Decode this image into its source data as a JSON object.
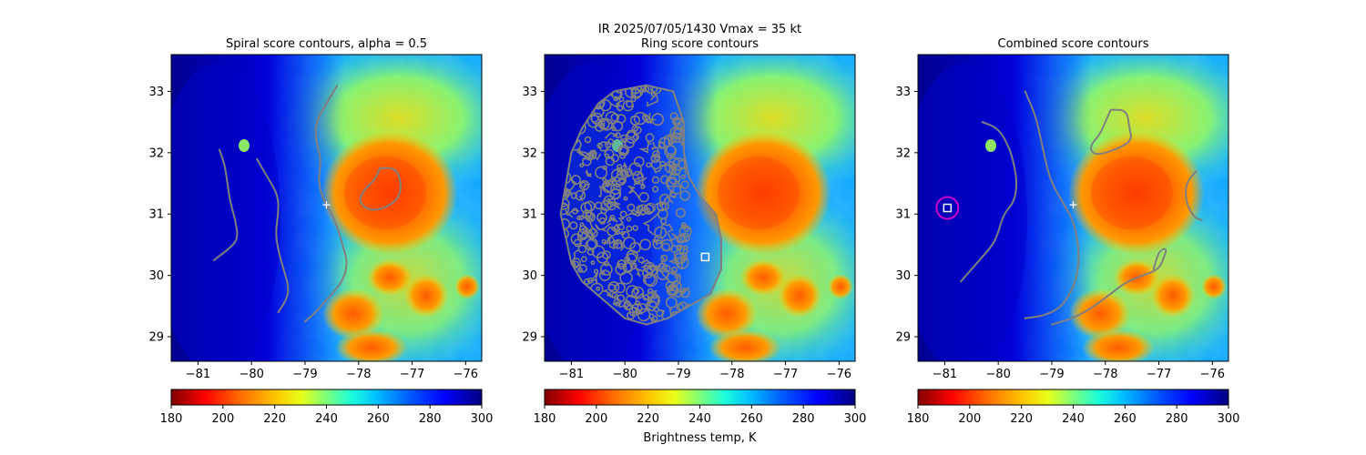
{
  "figure": {
    "suptitle_line1": "IR  2025/07/05/1430    Vmax = 35 kt",
    "colorbar_label": "Brightness temp, K"
  },
  "colors": {
    "contour": "#808080",
    "marker": "#ffffff",
    "circle": "#cc00cc"
  },
  "chart_data": [
    {
      "type": "heatmap",
      "title": "Spiral score contours, alpha =  0.5",
      "xlim": [
        -81.5,
        -75.7
      ],
      "ylim": [
        28.6,
        33.6
      ],
      "xticks": [
        -81,
        -80,
        -79,
        -78,
        -77,
        -76
      ],
      "yticks": [
        29,
        30,
        31,
        32,
        33
      ],
      "xtick_labels": [
        "−81",
        "−80",
        "−79",
        "−78",
        "−77",
        "−76"
      ],
      "ytick_labels": [
        "29",
        "30",
        "31",
        "32",
        "33"
      ],
      "colorbar": {
        "range": [
          180,
          300
        ],
        "ticks": [
          180,
          200,
          220,
          240,
          260,
          280,
          300
        ],
        "tick_labels": [
          "180",
          "200",
          "220",
          "240",
          "260",
          "280",
          "300"
        ],
        "cmap": "jet_r"
      },
      "center_marker": {
        "lon": -78.6,
        "lat": 31.15,
        "symbol": "plus"
      },
      "contours": [
        [
          [
            -80.6,
            32.05
          ],
          [
            -80.5,
            31.8
          ],
          [
            -80.45,
            31.5
          ],
          [
            -80.4,
            31.2
          ],
          [
            -80.3,
            30.9
          ],
          [
            -80.25,
            30.6
          ],
          [
            -80.4,
            30.45
          ],
          [
            -80.7,
            30.25
          ]
        ],
        [
          [
            -79.9,
            31.9
          ],
          [
            -79.7,
            31.6
          ],
          [
            -79.5,
            31.3
          ],
          [
            -79.5,
            31.0
          ],
          [
            -79.55,
            30.7
          ],
          [
            -79.5,
            30.4
          ],
          [
            -79.4,
            30.1
          ],
          [
            -79.3,
            29.8
          ],
          [
            -79.35,
            29.6
          ],
          [
            -79.5,
            29.4
          ]
        ],
        [
          [
            -78.4,
            33.1
          ],
          [
            -78.6,
            32.8
          ],
          [
            -78.8,
            32.5
          ],
          [
            -78.8,
            32.2
          ],
          [
            -78.7,
            31.9
          ],
          [
            -78.75,
            31.6
          ],
          [
            -78.7,
            31.3
          ],
          [
            -78.5,
            31.0
          ],
          [
            -78.4,
            30.8
          ],
          [
            -78.3,
            30.5
          ],
          [
            -78.2,
            30.2
          ],
          [
            -78.3,
            29.9
          ],
          [
            -78.5,
            29.7
          ],
          [
            -78.8,
            29.4
          ],
          [
            -79.0,
            29.25
          ]
        ],
        [
          [
            -77.6,
            31.75
          ],
          [
            -77.3,
            31.75
          ],
          [
            -77.2,
            31.5
          ],
          [
            -77.25,
            31.25
          ],
          [
            -77.5,
            31.1
          ],
          [
            -77.8,
            31.05
          ],
          [
            -78.0,
            31.2
          ],
          [
            -77.9,
            31.4
          ],
          [
            -77.7,
            31.55
          ],
          [
            -77.6,
            31.75
          ]
        ]
      ]
    },
    {
      "type": "heatmap",
      "title": "Ring score contours",
      "xlim": [
        -81.5,
        -75.7
      ],
      "ylim": [
        28.6,
        33.6
      ],
      "xticks": [
        -81,
        -80,
        -79,
        -78,
        -77,
        -76
      ],
      "yticks": [
        29,
        30,
        31,
        32,
        33
      ],
      "xtick_labels": [
        "−81",
        "−80",
        "−79",
        "−78",
        "−77",
        "−76"
      ],
      "ytick_labels": [
        "29",
        "30",
        "31",
        "32",
        "33"
      ],
      "colorbar": {
        "range": [
          180,
          300
        ],
        "ticks": [
          180,
          200,
          220,
          240,
          260,
          280,
          300
        ],
        "tick_labels": [
          "180",
          "200",
          "220",
          "240",
          "260",
          "280",
          "300"
        ],
        "cmap": "jet_r"
      },
      "center_marker": {
        "lon": -78.5,
        "lat": 30.3,
        "symbol": "square"
      },
      "contour_region": [
        [
          -80.2,
          33.0
        ],
        [
          -79.6,
          33.1
        ],
        [
          -79.1,
          33.0
        ],
        [
          -78.9,
          32.5
        ],
        [
          -78.9,
          32.0
        ],
        [
          -78.8,
          31.6
        ],
        [
          -78.6,
          31.3
        ],
        [
          -78.3,
          31.0
        ],
        [
          -78.2,
          30.6
        ],
        [
          -78.2,
          30.1
        ],
        [
          -78.4,
          29.7
        ],
        [
          -78.8,
          29.5
        ],
        [
          -79.2,
          29.3
        ],
        [
          -79.6,
          29.2
        ],
        [
          -80.0,
          29.3
        ],
        [
          -80.4,
          29.6
        ],
        [
          -80.8,
          29.9
        ],
        [
          -81.0,
          30.2
        ],
        [
          -81.1,
          30.6
        ],
        [
          -81.2,
          31.0
        ],
        [
          -81.1,
          31.5
        ],
        [
          -81.0,
          32.0
        ],
        [
          -80.8,
          32.4
        ],
        [
          -80.5,
          32.8
        ],
        [
          -80.2,
          33.0
        ]
      ]
    },
    {
      "type": "heatmap",
      "title": "Combined score contours",
      "xlim": [
        -81.5,
        -75.7
      ],
      "ylim": [
        28.6,
        33.6
      ],
      "xticks": [
        -81,
        -80,
        -79,
        -78,
        -77,
        -76
      ],
      "yticks": [
        29,
        30,
        31,
        32,
        33
      ],
      "xtick_labels": [
        "−81",
        "−80",
        "−79",
        "−78",
        "−77",
        "−76"
      ],
      "ytick_labels": [
        "29",
        "30",
        "31",
        "32",
        "33"
      ],
      "colorbar": {
        "range": [
          180,
          300
        ],
        "ticks": [
          180,
          200,
          220,
          240,
          260,
          280,
          300
        ],
        "tick_labels": [
          "180",
          "200",
          "220",
          "240",
          "260",
          "280",
          "300"
        ],
        "cmap": "jet_r"
      },
      "center_marker": {
        "lon": -78.6,
        "lat": 31.15,
        "symbol": "plus"
      },
      "best_marker": {
        "lon": -80.95,
        "lat": 31.1,
        "symbol": "square",
        "circle": true
      },
      "contours": [
        [
          [
            -80.3,
            32.5
          ],
          [
            -80.0,
            32.4
          ],
          [
            -79.8,
            32.1
          ],
          [
            -79.7,
            31.8
          ],
          [
            -79.65,
            31.5
          ],
          [
            -79.7,
            31.2
          ],
          [
            -79.9,
            31.0
          ],
          [
            -80.0,
            30.7
          ],
          [
            -80.1,
            30.5
          ],
          [
            -80.3,
            30.3
          ],
          [
            -80.5,
            30.1
          ],
          [
            -80.7,
            29.9
          ]
        ],
        [
          [
            -79.5,
            33.0
          ],
          [
            -79.3,
            32.6
          ],
          [
            -79.2,
            32.2
          ],
          [
            -79.1,
            31.8
          ],
          [
            -79.0,
            31.5
          ],
          [
            -78.8,
            31.2
          ],
          [
            -78.6,
            30.9
          ],
          [
            -78.5,
            30.5
          ],
          [
            -78.5,
            30.1
          ],
          [
            -78.6,
            29.8
          ],
          [
            -78.8,
            29.5
          ],
          [
            -79.1,
            29.35
          ],
          [
            -79.5,
            29.3
          ]
        ],
        [
          [
            -77.9,
            32.7
          ],
          [
            -77.6,
            32.7
          ],
          [
            -77.55,
            32.4
          ],
          [
            -77.5,
            32.2
          ],
          [
            -77.8,
            32.05
          ],
          [
            -78.2,
            31.95
          ],
          [
            -78.3,
            32.1
          ],
          [
            -78.1,
            32.3
          ],
          [
            -78.0,
            32.5
          ],
          [
            -77.9,
            32.7
          ]
        ],
        [
          [
            -76.3,
            31.7
          ],
          [
            -76.5,
            31.5
          ],
          [
            -76.5,
            31.2
          ],
          [
            -76.35,
            30.95
          ],
          [
            -76.2,
            30.9
          ]
        ],
        [
          [
            -79.0,
            29.2
          ],
          [
            -78.6,
            29.3
          ],
          [
            -78.2,
            29.5
          ],
          [
            -77.9,
            29.7
          ],
          [
            -77.6,
            29.9
          ],
          [
            -77.3,
            30.0
          ],
          [
            -77.0,
            30.1
          ],
          [
            -76.9,
            30.3
          ],
          [
            -76.85,
            30.45
          ],
          [
            -77.0,
            30.4
          ],
          [
            -77.1,
            30.1
          ]
        ]
      ]
    }
  ]
}
